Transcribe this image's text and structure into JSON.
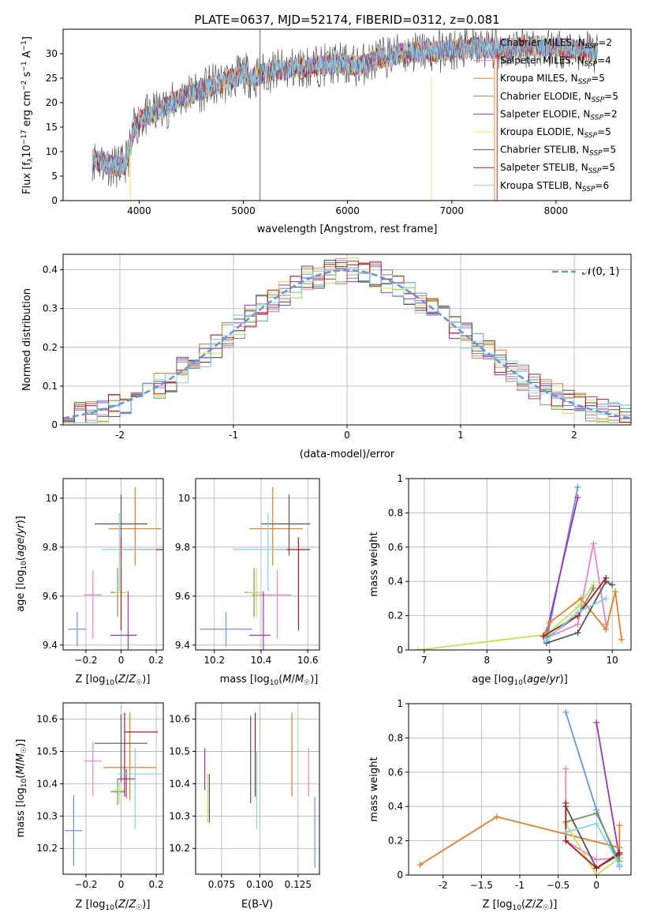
{
  "figure_title": "PLATE=0637, MJD=52174, FIBERID=0312, z=0.081",
  "colors": {
    "c0": "#6a96d8",
    "c1": "#de7f2f",
    "c2": "#ea84c8",
    "c3": "#6d9a5c",
    "c4": "#9a36b0",
    "c5": "#c4e05a",
    "c6": "#555555",
    "c7": "#a31d1d",
    "c8": "#84d2e4",
    "c9": "#e6e06a"
  },
  "chart_data": [
    {
      "type": "line",
      "name": "spectrum",
      "xlabel": "wavelength [Angstrom, rest frame]",
      "ylabel": "Flux [f_λ 10^-17 erg cm^-2 s^-1 A^-1]",
      "xlim": [
        3270,
        8720
      ],
      "ylim": [
        0,
        35
      ],
      "xticks": [
        4000,
        5000,
        6000,
        7000,
        8000
      ],
      "yticks": [
        0,
        5,
        10,
        15,
        20,
        25,
        30
      ],
      "grid": false,
      "legend_position": "right",
      "continuum": {
        "x": [
          3550,
          3650,
          3750,
          3850,
          3900,
          3950,
          4000,
          4100,
          4200,
          4300,
          4400,
          4500,
          4600,
          4700,
          4800,
          4900,
          5000,
          5100,
          5200,
          5300,
          5500,
          5700,
          5900,
          6100,
          6300,
          6500,
          6700,
          6900,
          7100,
          7300,
          7500,
          7700,
          7900,
          8100,
          8300,
          8400
        ],
        "y": [
          8.5,
          8.0,
          7.0,
          7.0,
          9.5,
          14.5,
          16.5,
          17.5,
          18.5,
          19.5,
          21.0,
          22.0,
          22.5,
          23.5,
          24.0,
          24.8,
          26.0,
          25.0,
          26.0,
          26.5,
          27.0,
          27.5,
          28.0,
          27.5,
          29.0,
          30.0,
          30.5,
          30.5,
          31.0,
          31.2,
          31.0,
          31.5,
          31.5,
          31.0,
          30.5,
          30.0
        ]
      },
      "legend": [
        {
          "label": "Chabrier MILES, N",
          "nssp": "=2",
          "color": "#6a96d8"
        },
        {
          "label": "Salpeter MILES, N",
          "nssp": "=4",
          "color": "#ea84c8"
        },
        {
          "label": "Kroupa MILES, N",
          "nssp": "=5",
          "color": "#de7f2f"
        },
        {
          "label": "Chabrier ELODIE, N",
          "nssp": "=5",
          "color": "#6d9a5c"
        },
        {
          "label": "Salpeter ELODIE, N",
          "nssp": "=2",
          "color": "#9a36b0"
        },
        {
          "label": "Kroupa ELODIE, N",
          "nssp": "=5",
          "color": "#e6e06a"
        },
        {
          "label": "Chabrier STELIB, N",
          "nssp": "=5",
          "color": "#555555"
        },
        {
          "label": "Salpeter STELIB, N",
          "nssp": "=5",
          "color": "#a31d1d"
        },
        {
          "label": "Kroupa STELIB, N",
          "nssp": "=6",
          "color": "#84d2e4"
        }
      ],
      "legend_sub": "SSP"
    },
    {
      "type": "histogram",
      "name": "residuals",
      "xlabel": "(data-model)/error",
      "ylabel": "Normed distribution",
      "xlim": [
        -2.5,
        2.5
      ],
      "ylim": [
        0,
        0.44
      ],
      "xticks": [
        -2,
        -1,
        0,
        1,
        2
      ],
      "yticks": [
        0.0,
        0.1,
        0.2,
        0.3,
        0.4
      ],
      "grid": true,
      "legend_label": "𝒩(0, 1)",
      "legend_position": "top-right",
      "bin_width": 0.1,
      "reference_curve": "gaussian N(0,1), dashed"
    },
    {
      "type": "scatter",
      "name": "age-vs-Z",
      "xlabel": "Z [log10(Z/Z☉)]",
      "ylabel": "age  [log10(age/yr)]",
      "xlim": [
        -0.33,
        0.24
      ],
      "ylim": [
        9.38,
        10.08
      ],
      "xticks": [
        -0.2,
        0.0,
        0.2
      ],
      "yticks": [
        9.4,
        9.6,
        9.8,
        10.0
      ],
      "grid": true,
      "points": [
        {
          "x": -0.25,
          "y": 9.465,
          "xerr": [
            0.05,
            0.05
          ],
          "yerr": [
            0.07,
            0.07
          ],
          "color": "#6a96d8"
        },
        {
          "x": -0.16,
          "y": 9.605,
          "xerr": [
            0.05,
            0.05
          ],
          "yerr": [
            0.18,
            0.1
          ],
          "color": "#ea84c8"
        },
        {
          "x": 0.08,
          "y": 9.875,
          "xerr": [
            0.15,
            0.15
          ],
          "yerr": [
            0.15,
            0.17
          ],
          "color": "#de7f2f"
        },
        {
          "x": -0.02,
          "y": 9.615,
          "xerr": [
            0.04,
            0.04
          ],
          "yerr": [
            0.1,
            0.1
          ],
          "color": "#6d9a5c"
        },
        {
          "x": 0.04,
          "y": 9.44,
          "xerr": [
            0.1,
            0.05
          ],
          "yerr": [
            0.1,
            0.18
          ],
          "color": "#9a36b0"
        },
        {
          "x": 0.0,
          "y": 9.615,
          "xerr": [
            0.04,
            0.04
          ],
          "yerr": [
            0.1,
            0.1
          ],
          "color": "#c4e05a"
        },
        {
          "x": 0.0,
          "y": 9.895,
          "xerr": [
            0.15,
            0.15
          ],
          "yerr": [
            0.13,
            0.12
          ],
          "color": "#555555"
        },
        {
          "x": 0.0,
          "y": 9.79,
          "xerr": [
            0.0,
            0.24
          ],
          "yerr": [
            0.33,
            0.05
          ],
          "color": "#a31d1d"
        },
        {
          "x": -0.01,
          "y": 9.79,
          "xerr": [
            0.1,
            0.21
          ],
          "yerr": [
            0.17,
            0.15
          ],
          "color": "#84d2e4"
        }
      ]
    },
    {
      "type": "scatter",
      "name": "age-vs-mass",
      "xlabel": "mass [log10(M/M☉)]",
      "ylabel": "",
      "xlim": [
        10.12,
        10.65
      ],
      "ylim": [
        9.38,
        10.08
      ],
      "xticks": [
        10.2,
        10.4,
        10.6
      ],
      "yticks": [
        9.4,
        9.6,
        9.8,
        10.0
      ],
      "grid": true,
      "points": [
        {
          "x": 10.25,
          "y": 9.465,
          "xerr": [
            0.11,
            0.11
          ],
          "yerr": [
            0.07,
            0.07
          ],
          "color": "#6a96d8"
        },
        {
          "x": 10.47,
          "y": 9.605,
          "xerr": [
            0.11,
            0.06
          ],
          "yerr": [
            0.18,
            0.1
          ],
          "color": "#ea84c8"
        },
        {
          "x": 10.45,
          "y": 9.875,
          "xerr": [
            0.1,
            0.13
          ],
          "yerr": [
            0.15,
            0.17
          ],
          "color": "#de7f2f"
        },
        {
          "x": 10.37,
          "y": 9.615,
          "xerr": [
            0.04,
            0.04
          ],
          "yerr": [
            0.1,
            0.1
          ],
          "color": "#6d9a5c"
        },
        {
          "x": 10.41,
          "y": 9.44,
          "xerr": [
            0.06,
            0.03
          ],
          "yerr": [
            0.1,
            0.18
          ],
          "color": "#9a36b0"
        },
        {
          "x": 10.38,
          "y": 9.615,
          "xerr": [
            0.04,
            0.03
          ],
          "yerr": [
            0.1,
            0.1
          ],
          "color": "#c4e05a"
        },
        {
          "x": 10.52,
          "y": 9.895,
          "xerr": [
            0.12,
            0.09
          ],
          "yerr": [
            0.13,
            0.12
          ],
          "color": "#555555"
        },
        {
          "x": 10.56,
          "y": 9.79,
          "xerr": [
            0.1,
            0.05
          ],
          "yerr": [
            0.33,
            0.05
          ],
          "color": "#a31d1d"
        },
        {
          "x": 10.43,
          "y": 9.79,
          "xerr": [
            0.15,
            0.08
          ],
          "yerr": [
            0.17,
            0.15
          ],
          "color": "#84d2e4"
        }
      ]
    },
    {
      "type": "line",
      "name": "mass-weight-vs-age",
      "xlabel": "age  [log10(age/yr)]",
      "ylabel": "mass weight",
      "xlim": [
        6.75,
        10.3
      ],
      "ylim": [
        0,
        1
      ],
      "xticks": [
        7,
        8,
        9,
        10
      ],
      "yticks": [
        0.0,
        0.2,
        0.4,
        0.6,
        0.8,
        1.0
      ],
      "grid": true,
      "series": [
        {
          "color": "#6a96d8",
          "x": [
            8.95,
            9.45
          ],
          "y": [
            0.05,
            0.95
          ]
        },
        {
          "color": "#9a36b0",
          "x": [
            8.95,
            9.45
          ],
          "y": [
            0.1,
            0.89
          ]
        },
        {
          "color": "#ea84c8",
          "x": [
            8.95,
            9.45,
            9.7,
            9.9
          ],
          "y": [
            0.07,
            0.15,
            0.62,
            0.15
          ]
        },
        {
          "color": "#de7f2f",
          "x": [
            8.9,
            9.0,
            9.5,
            9.9,
            10.05,
            10.15
          ],
          "y": [
            0.08,
            0.16,
            0.3,
            0.12,
            0.34,
            0.06
          ]
        },
        {
          "color": "#c4e05a",
          "x": [
            6.9,
            8.95,
            9.45,
            9.7
          ],
          "y": [
            0.0,
            0.09,
            0.25,
            0.38
          ]
        },
        {
          "color": "#6d9a5c",
          "x": [
            8.95,
            9.45,
            9.7
          ],
          "y": [
            0.07,
            0.2,
            0.36
          ]
        },
        {
          "color": "#555555",
          "x": [
            8.95,
            9.45,
            9.9,
            10.0
          ],
          "y": [
            0.04,
            0.1,
            0.4,
            0.38
          ]
        },
        {
          "color": "#a31d1d",
          "x": [
            8.9,
            9.45,
            9.9
          ],
          "y": [
            0.08,
            0.2,
            0.42
          ]
        },
        {
          "color": "#84d2e4",
          "x": [
            8.95,
            9.45,
            9.9
          ],
          "y": [
            0.06,
            0.22,
            0.3
          ]
        }
      ]
    },
    {
      "type": "scatter",
      "name": "mass-vs-Z",
      "xlabel": "Z [log10(Z/Z☉)]",
      "ylabel": "mass [log10(M/M☉)]",
      "xlim": [
        -0.33,
        0.24
      ],
      "ylim": [
        10.12,
        10.65
      ],
      "xticks": [
        -0.2,
        0.0,
        0.2
      ],
      "yticks": [
        10.2,
        10.3,
        10.4,
        10.5,
        10.6
      ],
      "grid": true,
      "points": [
        {
          "x": -0.27,
          "y": 10.255,
          "xerr": [
            0.05,
            0.05
          ],
          "yerr": [
            0.11,
            0.11
          ],
          "color": "#6a96d8"
        },
        {
          "x": -0.16,
          "y": 10.47,
          "xerr": [
            0.05,
            0.05
          ],
          "yerr": [
            0.11,
            0.06
          ],
          "color": "#ea84c8"
        },
        {
          "x": 0.05,
          "y": 10.45,
          "xerr": [
            0.15,
            0.15
          ],
          "yerr": [
            0.1,
            0.17
          ],
          "color": "#de7f2f"
        },
        {
          "x": -0.02,
          "y": 10.375,
          "xerr": [
            0.04,
            0.04
          ],
          "yerr": [
            0.04,
            0.04
          ],
          "color": "#6d9a5c"
        },
        {
          "x": 0.03,
          "y": 10.415,
          "xerr": [
            0.05,
            0.05
          ],
          "yerr": [
            0.06,
            0.03
          ],
          "color": "#9a36b0"
        },
        {
          "x": -0.01,
          "y": 10.38,
          "xerr": [
            0.04,
            0.04
          ],
          "yerr": [
            0.04,
            0.03
          ],
          "color": "#c4e05a"
        },
        {
          "x": 0.0,
          "y": 10.525,
          "xerr": [
            0.15,
            0.15
          ],
          "yerr": [
            0.12,
            0.09
          ],
          "color": "#555555"
        },
        {
          "x": 0.02,
          "y": 10.56,
          "xerr": [
            0.0,
            0.19
          ],
          "yerr": [
            0.2,
            0.06
          ],
          "color": "#a31d1d"
        },
        {
          "x": 0.08,
          "y": 10.43,
          "xerr": [
            0.1,
            0.15
          ],
          "yerr": [
            0.17,
            0.08
          ],
          "color": "#84d2e4"
        }
      ]
    },
    {
      "type": "scatter",
      "name": "mass-vs-ebv",
      "xlabel": "E(B-V)",
      "ylabel": "",
      "xlim": [
        0.058,
        0.139
      ],
      "ylim": [
        10.12,
        10.65
      ],
      "xticks": [
        0.075,
        0.1,
        0.125
      ],
      "xtick_labels": [
        "0.075",
        "0.100",
        "0.125"
      ],
      "yticks": [
        10.2,
        10.3,
        10.4,
        10.5,
        10.6
      ],
      "grid": true,
      "points": [
        {
          "x": 0.064,
          "y": 10.44,
          "xerr": [
            0,
            0
          ],
          "yerr": [
            0.06,
            0.07
          ],
          "color": "#9a36b0"
        },
        {
          "x": 0.066,
          "y": 10.37,
          "xerr": [
            0,
            0
          ],
          "yerr": [
            0.09,
            0.06
          ],
          "color": "#c4e05a"
        },
        {
          "x": 0.067,
          "y": 10.36,
          "xerr": [
            0,
            0
          ],
          "yerr": [
            0.08,
            0.07
          ],
          "color": "#555555"
        },
        {
          "x": 0.094,
          "y": 10.48,
          "xerr": [
            0,
            0
          ],
          "yerr": [
            0.14,
            0.13
          ],
          "color": "#555555"
        },
        {
          "x": 0.097,
          "y": 10.5,
          "xerr": [
            0,
            0
          ],
          "yerr": [
            0.14,
            0.12
          ],
          "color": "#a31d1d"
        },
        {
          "x": 0.098,
          "y": 10.42,
          "xerr": [
            0,
            0
          ],
          "yerr": [
            0.16,
            0.08
          ],
          "color": "#84d2e4"
        },
        {
          "x": 0.121,
          "y": 10.49,
          "xerr": [
            0,
            0
          ],
          "yerr": [
            0.13,
            0.13
          ],
          "color": "#de7f2f"
        },
        {
          "x": 0.132,
          "y": 10.43,
          "xerr": [
            0,
            0
          ],
          "yerr": [
            0.07,
            0.08
          ],
          "color": "#ea84c8"
        },
        {
          "x": 0.136,
          "y": 10.25,
          "xerr": [
            0,
            0
          ],
          "yerr": [
            0.11,
            0.11
          ],
          "color": "#6a96d8"
        }
      ]
    },
    {
      "type": "line",
      "name": "mass-weight-vs-Z",
      "xlabel": "Z [log10(Z/Z☉)]",
      "ylabel": "mass weight",
      "xlim": [
        -2.45,
        0.45
      ],
      "ylim": [
        0,
        1
      ],
      "xticks": [
        -2.0,
        -1.5,
        -1.0,
        -0.5,
        0.0
      ],
      "yticks": [
        0.0,
        0.2,
        0.4,
        0.6,
        0.8,
        1.0
      ],
      "grid": true,
      "series": [
        {
          "color": "#6a96d8",
          "x": [
            -0.4,
            0.0,
            0.3
          ],
          "y": [
            0.95,
            0.38,
            0.05
          ]
        },
        {
          "color": "#9a36b0",
          "x": [
            0.0,
            0.3
          ],
          "y": [
            0.89,
            0.1
          ]
        },
        {
          "color": "#ea84c8",
          "x": [
            -0.4,
            -0.4,
            0.0,
            0.3
          ],
          "y": [
            0.62,
            0.2,
            0.09,
            0.1
          ]
        },
        {
          "color": "#de7f2f",
          "x": [
            -2.3,
            -1.3,
            0.3,
            0.3
          ],
          "y": [
            0.06,
            0.34,
            0.16,
            0.29
          ]
        },
        {
          "color": "#c4e05a",
          "x": [
            -0.4,
            0.0,
            0.3
          ],
          "y": [
            0.3,
            0.0,
            0.1
          ]
        },
        {
          "color": "#6d9a5c",
          "x": [
            -0.4,
            0.0,
            0.3
          ],
          "y": [
            0.31,
            0.36,
            0.08
          ]
        },
        {
          "color": "#555555",
          "x": [
            -0.4,
            0.0,
            0.3
          ],
          "y": [
            0.4,
            0.04,
            0.12
          ]
        },
        {
          "color": "#a31d1d",
          "x": [
            -0.4,
            -0.4,
            0.0,
            0.3
          ],
          "y": [
            0.42,
            0.2,
            0.04,
            0.13
          ]
        },
        {
          "color": "#84d2e4",
          "x": [
            -0.4,
            0.0,
            0.3
          ],
          "y": [
            0.25,
            0.3,
            0.06
          ]
        }
      ]
    }
  ]
}
